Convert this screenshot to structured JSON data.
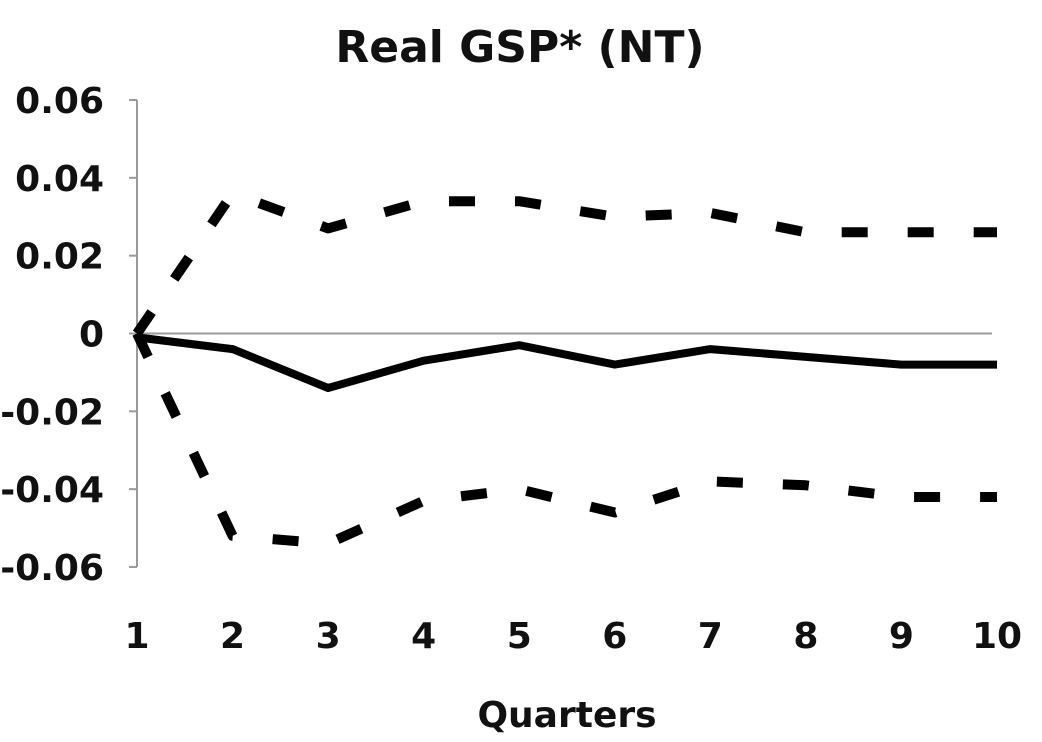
{
  "chart_data": {
    "type": "line",
    "title": "Real GSP* (NT)",
    "xlabel": "Quarters",
    "ylabel": "",
    "x": [
      1,
      2,
      3,
      4,
      5,
      6,
      7,
      8,
      9,
      10
    ],
    "x_tick_labels": [
      "1",
      "2",
      "3",
      "4",
      "5",
      "6",
      "7",
      "8",
      "9",
      "10"
    ],
    "y_ticks": [
      0.06,
      0.04,
      0.02,
      0,
      -0.02,
      -0.04,
      -0.06
    ],
    "y_tick_labels": [
      "0.06",
      "0.04",
      "0.02",
      "0",
      "-0.02",
      "-0.04",
      "-0.06"
    ],
    "ylim": [
      -0.06,
      0.06
    ],
    "xlim": [
      1,
      10
    ],
    "grid": false,
    "legend": "none",
    "series": [
      {
        "style": "solid",
        "color": "#000000",
        "values": [
          -0.001,
          -0.004,
          -0.014,
          -0.007,
          -0.003,
          -0.008,
          -0.004,
          -0.006,
          -0.008,
          -0.008
        ]
      },
      {
        "style": "dashed",
        "color": "#000000",
        "values": [
          0.0,
          0.036,
          0.027,
          0.034,
          0.034,
          0.03,
          0.031,
          0.026,
          0.026,
          0.026
        ]
      },
      {
        "style": "dashed",
        "color": "#000000",
        "values": [
          0.0,
          -0.052,
          -0.054,
          -0.043,
          -0.04,
          -0.046,
          -0.038,
          -0.039,
          -0.042,
          -0.042
        ]
      }
    ]
  }
}
